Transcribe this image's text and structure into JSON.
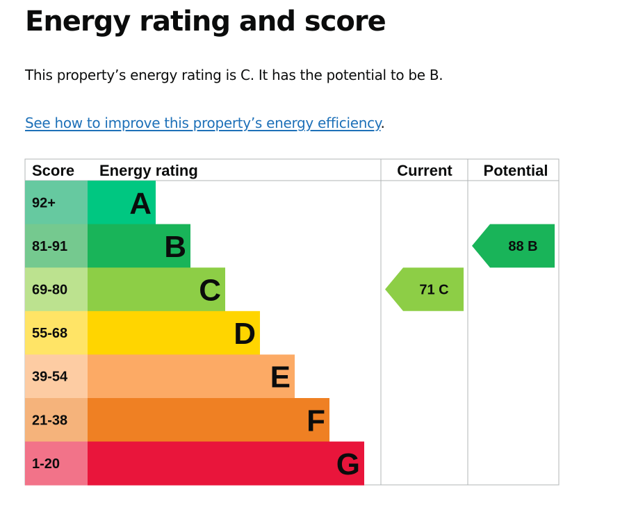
{
  "page": {
    "title": "Energy rating and score",
    "description": "This property’s energy rating is C. It has the potential to be B.",
    "link_text": "See how to improve this property’s energy efficiency",
    "link_suffix": "."
  },
  "chart_data": {
    "type": "table",
    "columns": [
      "Score",
      "Energy rating",
      "Current",
      "Potential"
    ],
    "bands": [
      {
        "letter": "A",
        "score": "92+",
        "color": "#00c781",
        "score_bg": "#66c9a0"
      },
      {
        "letter": "B",
        "score": "81-91",
        "color": "#19b459",
        "score_bg": "#75c98f"
      },
      {
        "letter": "C",
        "score": "69-80",
        "color": "#8dce46",
        "score_bg": "#bce28f"
      },
      {
        "letter": "D",
        "score": "55-68",
        "color": "#ffd500",
        "score_bg": "#ffe466"
      },
      {
        "letter": "E",
        "score": "39-54",
        "color": "#fcaa65",
        "score_bg": "#fdcca3"
      },
      {
        "letter": "F",
        "score": "21-38",
        "color": "#ef8023",
        "score_bg": "#f5b37b"
      },
      {
        "letter": "G",
        "score": "1-20",
        "color": "#e9153b",
        "score_bg": "#f27389"
      }
    ],
    "current": {
      "value": 71,
      "letter": "C",
      "label": "71 C",
      "color": "#8dce46"
    },
    "potential": {
      "value": 88,
      "letter": "B",
      "label": "88 B",
      "color": "#19b459"
    }
  }
}
